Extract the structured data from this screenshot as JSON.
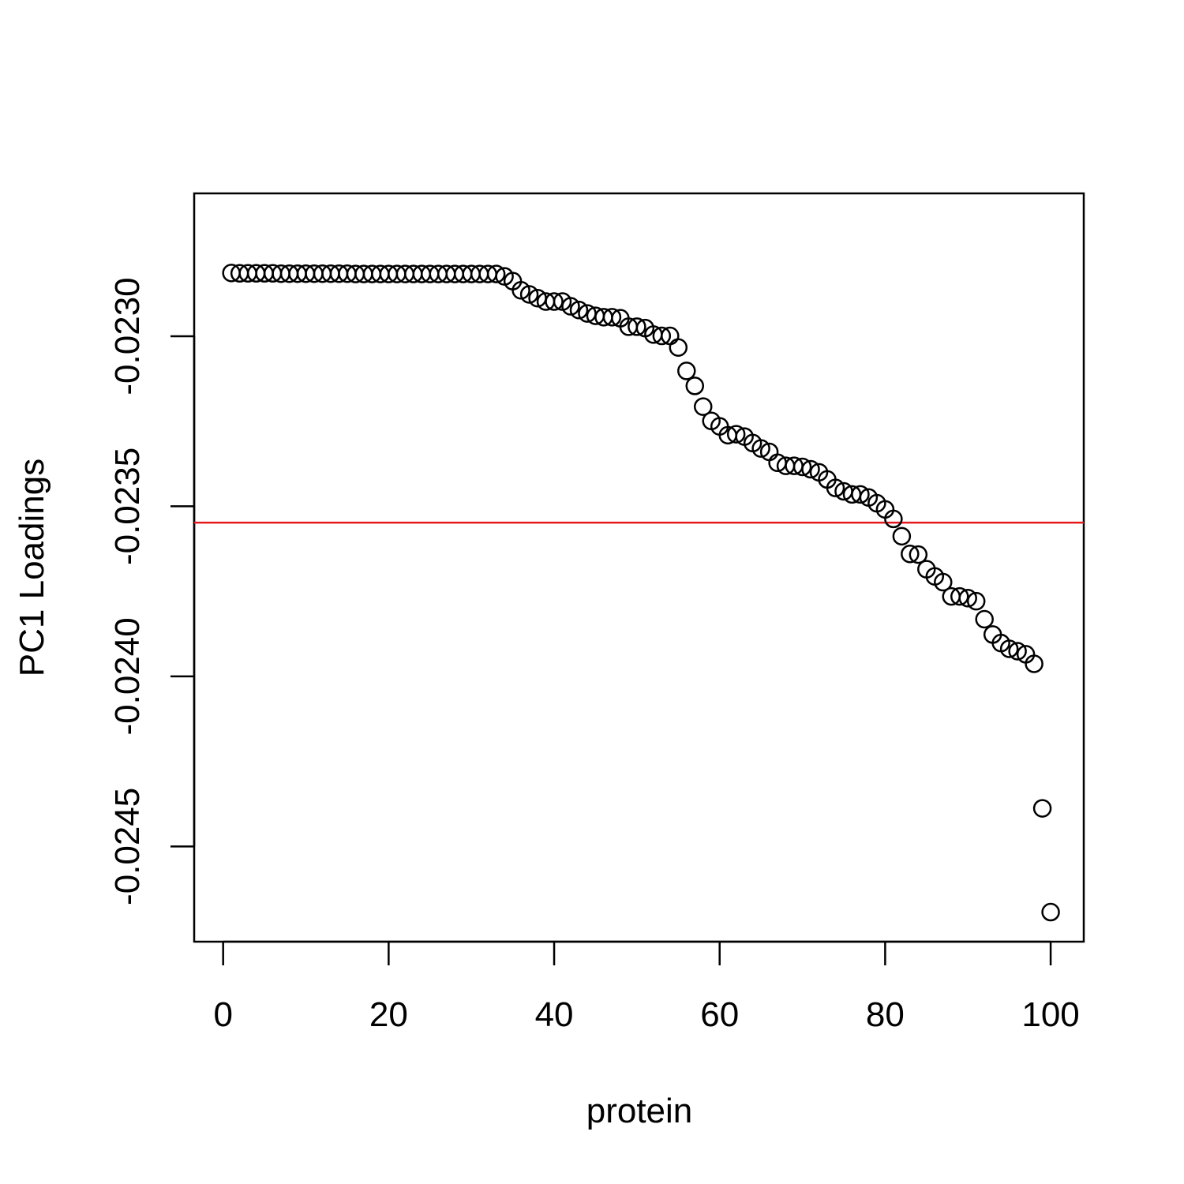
{
  "chart_data": {
    "type": "scatter",
    "title": "",
    "xlabel": "protein",
    "ylabel": "PC1 Loadings",
    "xlim": [
      -3.5,
      104
    ],
    "ylim": [
      -0.02478,
      -0.02258
    ],
    "x_ticks": [
      0,
      20,
      40,
      60,
      80,
      100
    ],
    "y_ticks": [
      -0.023,
      -0.0235,
      -0.024,
      -0.0245
    ],
    "x_tick_labels": [
      "0",
      "20",
      "40",
      "60",
      "80",
      "100"
    ],
    "y_tick_labels": [
      "-0.0230",
      "-0.0235",
      "-0.0240",
      "-0.0245"
    ],
    "reference_line": {
      "y": -0.023548,
      "color": "#e41a1c"
    },
    "point_color": "#000000",
    "grid": false,
    "series": [
      {
        "x": [
          1,
          2,
          3,
          4,
          5,
          6,
          7,
          8,
          9,
          10,
          11,
          12,
          13,
          14,
          15,
          16,
          17,
          18,
          19,
          20,
          21,
          22,
          23,
          24,
          25,
          26,
          27,
          28,
          29,
          30,
          31,
          32,
          33,
          34,
          35,
          36,
          37,
          38,
          39,
          40,
          41,
          42,
          43,
          44,
          45,
          46,
          47,
          48,
          49,
          50,
          51,
          52,
          53,
          54,
          55,
          56,
          57,
          58,
          59,
          60,
          61,
          62,
          63,
          64,
          65,
          66,
          67,
          68,
          69,
          70,
          71,
          72,
          73,
          74,
          75,
          76,
          77,
          78,
          79,
          80,
          81,
          82,
          83,
          84,
          85,
          86,
          87,
          88,
          89,
          90,
          91,
          92,
          93,
          94,
          95,
          96,
          97,
          98,
          99,
          100
        ],
        "y": [
          -0.022814,
          -0.022815,
          -0.022815,
          -0.022815,
          -0.022815,
          -0.022815,
          -0.022816,
          -0.022816,
          -0.022816,
          -0.022816,
          -0.022816,
          -0.022816,
          -0.022816,
          -0.022816,
          -0.022816,
          -0.022817,
          -0.022817,
          -0.022817,
          -0.022817,
          -0.022817,
          -0.022817,
          -0.022817,
          -0.022817,
          -0.022817,
          -0.022817,
          -0.022817,
          -0.022817,
          -0.022817,
          -0.022817,
          -0.022817,
          -0.022817,
          -0.022817,
          -0.022817,
          -0.022824,
          -0.022838,
          -0.022865,
          -0.022877,
          -0.022888,
          -0.022898,
          -0.022898,
          -0.022898,
          -0.022912,
          -0.022923,
          -0.022933,
          -0.02294,
          -0.022944,
          -0.022944,
          -0.022947,
          -0.022972,
          -0.022972,
          -0.022976,
          -0.022995,
          -0.022999,
          -0.022999,
          -0.023033,
          -0.023102,
          -0.023146,
          -0.023207,
          -0.023249,
          -0.023265,
          -0.023291,
          -0.023288,
          -0.023295,
          -0.023314,
          -0.02333,
          -0.02334,
          -0.023372,
          -0.023381,
          -0.023381,
          -0.023384,
          -0.023391,
          -0.0234,
          -0.023421,
          -0.023446,
          -0.023456,
          -0.023465,
          -0.023465,
          -0.023474,
          -0.023491,
          -0.023509,
          -0.023537,
          -0.023588,
          -0.02364,
          -0.023642,
          -0.023685,
          -0.023706,
          -0.023723,
          -0.023765,
          -0.023765,
          -0.02377,
          -0.023779,
          -0.023832,
          -0.023877,
          -0.023902,
          -0.023919,
          -0.023926,
          -0.023935,
          -0.023963,
          -0.024388,
          -0.024693
        ]
      }
    ]
  }
}
